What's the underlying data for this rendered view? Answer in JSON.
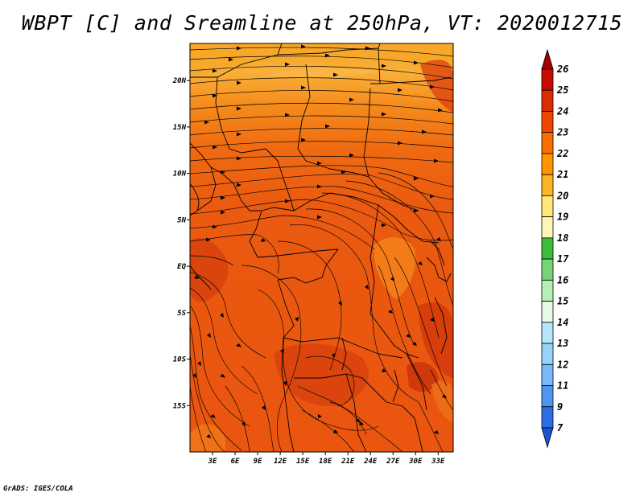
{
  "title": "WBPT [C] and Sreamline at 250hPa, VT: 2020012715",
  "credit": "GrADS: IGES/COLA",
  "map": {
    "lon_range": [
      0,
      35
    ],
    "lat_range": [
      -20,
      24
    ],
    "lon_ticks": [
      "3E",
      "6E",
      "9E",
      "12E",
      "15E",
      "18E",
      "21E",
      "24E",
      "27E",
      "30E",
      "33E"
    ],
    "lat_ticks": [
      "20N",
      "15N",
      "10N",
      "5N",
      "EQ",
      "5S",
      "10S",
      "15S"
    ]
  },
  "colorbar": {
    "labels": [
      "26",
      "25",
      "24",
      "23",
      "22",
      "21",
      "20",
      "19",
      "18",
      "17",
      "16",
      "15",
      "14",
      "13",
      "12",
      "11",
      "9",
      "7"
    ],
    "colors": [
      "#a50000",
      "#c80a00",
      "#dc2d00",
      "#f04600",
      "#fa6e00",
      "#ff9600",
      "#ffb428",
      "#ffe678",
      "#fff5b4",
      "#3cbe3c",
      "#78d278",
      "#b4f0b4",
      "#e6fae6",
      "#b4e6fa",
      "#96d2fa",
      "#78b9fa",
      "#5096f0",
      "#2d6ee6",
      "#1e50d2"
    ]
  }
}
